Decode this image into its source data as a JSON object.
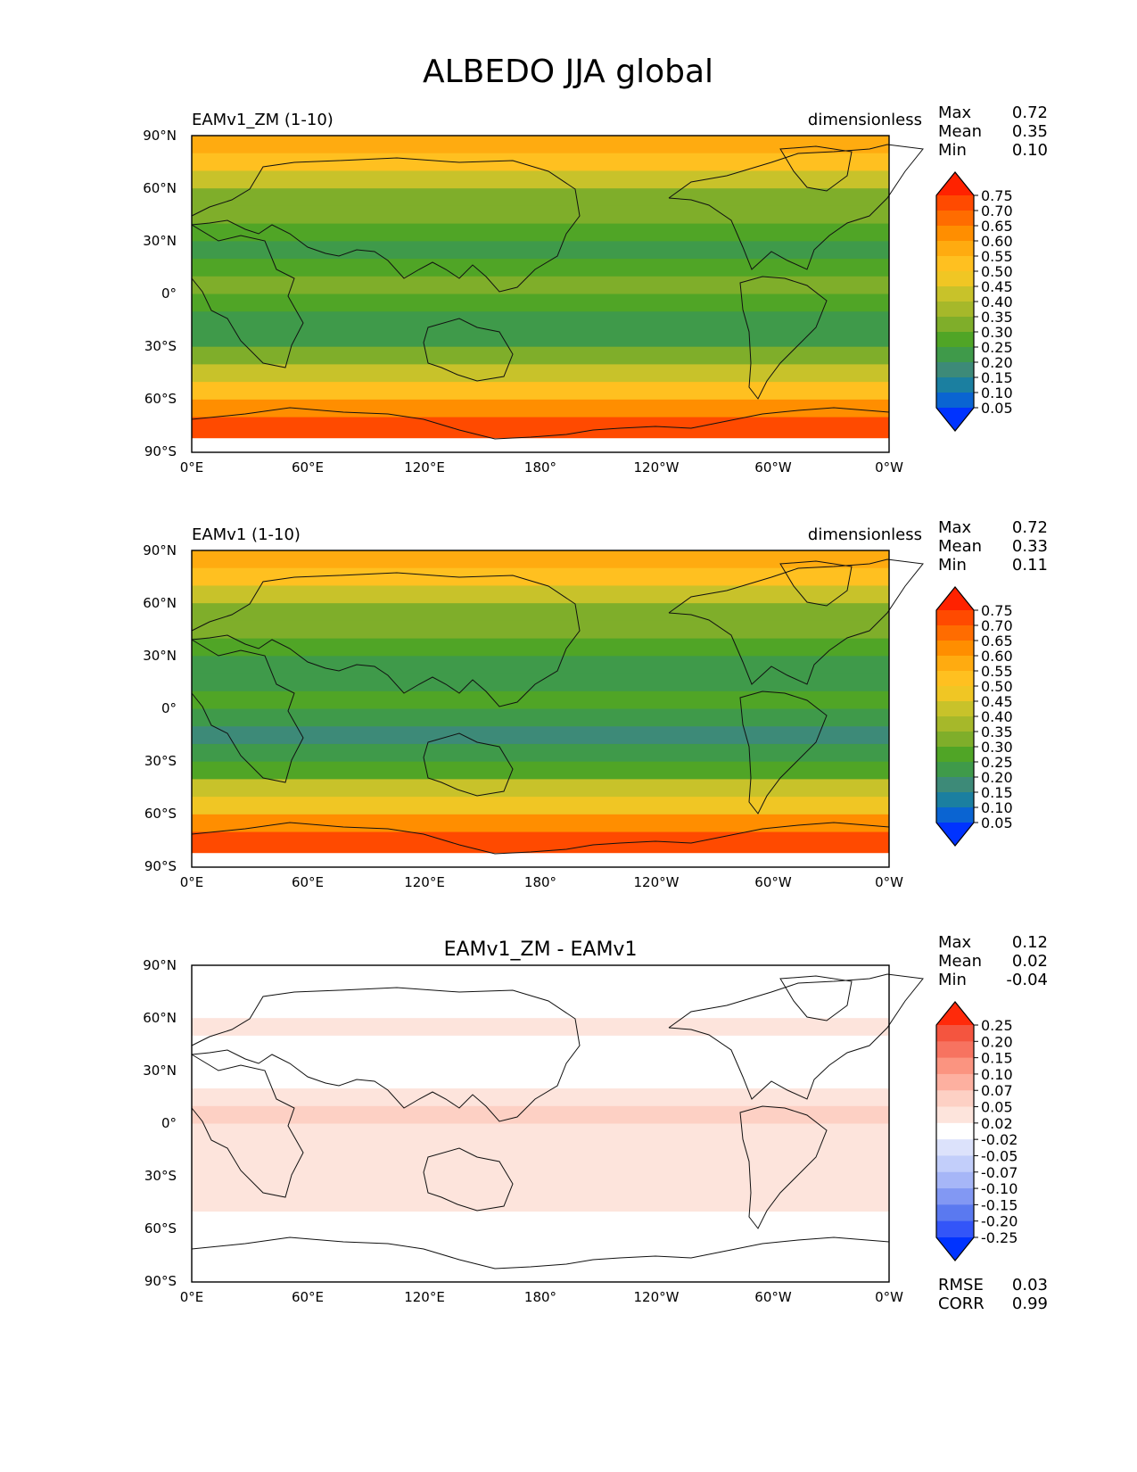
{
  "page_title": "ALBEDO JJA global",
  "chart_data": [
    {
      "type": "heatmap",
      "title_left": "EAMv1_ZM (1-10)",
      "title_right": "dimensionless",
      "stats": [
        {
          "label": "Max",
          "value": "0.72"
        },
        {
          "label": "Mean",
          "value": "0.35"
        },
        {
          "label": "Min",
          "value": "0.10"
        }
      ],
      "x_ticks": [
        "0°E",
        "60°E",
        "120°E",
        "180°",
        "120°W",
        "60°W",
        "0°W"
      ],
      "y_ticks": [
        "90°N",
        "60°N",
        "30°N",
        "0°",
        "30°S",
        "60°S",
        "90°S"
      ],
      "xlim": [
        0,
        360
      ],
      "ylim": [
        -90,
        90
      ],
      "colorbar": {
        "levels": [
          "0.75",
          "0.70",
          "0.65",
          "0.60",
          "0.55",
          "0.50",
          "0.45",
          "0.40",
          "0.35",
          "0.30",
          "0.25",
          "0.20",
          "0.15",
          "0.10",
          "0.05"
        ],
        "colors": [
          "#ff2200",
          "#ff4a00",
          "#ff6c00",
          "#ff8e00",
          "#ffab10",
          "#ffc020",
          "#f0c624",
          "#c8c22a",
          "#a6b82a",
          "#7fae2a",
          "#50a526",
          "#3f9a4a",
          "#3d8a78",
          "#1b7fa0",
          "#0a64d2",
          "#0033ff"
        ]
      },
      "zonal_profile": [
        {
          "lat": 90,
          "value": 0.58
        },
        {
          "lat": 80,
          "value": 0.5
        },
        {
          "lat": 70,
          "value": 0.4
        },
        {
          "lat": 60,
          "value": 0.34
        },
        {
          "lat": 50,
          "value": 0.32
        },
        {
          "lat": 40,
          "value": 0.27
        },
        {
          "lat": 30,
          "value": 0.22
        },
        {
          "lat": 20,
          "value": 0.25
        },
        {
          "lat": 10,
          "value": 0.33
        },
        {
          "lat": 0,
          "value": 0.25
        },
        {
          "lat": -10,
          "value": 0.2
        },
        {
          "lat": -20,
          "value": 0.23
        },
        {
          "lat": -30,
          "value": 0.3
        },
        {
          "lat": -40,
          "value": 0.42
        },
        {
          "lat": -50,
          "value": 0.5
        },
        {
          "lat": -60,
          "value": 0.6
        },
        {
          "lat": -70,
          "value": 0.72
        },
        {
          "lat": -80,
          "value": 0.7
        }
      ]
    },
    {
      "type": "heatmap",
      "title_left": "EAMv1 (1-10)",
      "title_right": "dimensionless",
      "stats": [
        {
          "label": "Max",
          "value": "0.72"
        },
        {
          "label": "Mean",
          "value": "0.33"
        },
        {
          "label": "Min",
          "value": "0.11"
        }
      ],
      "x_ticks": [
        "0°E",
        "60°E",
        "120°E",
        "180°",
        "120°W",
        "60°W",
        "0°W"
      ],
      "y_ticks": [
        "90°N",
        "60°N",
        "30°N",
        "0°",
        "30°S",
        "60°S",
        "90°S"
      ],
      "xlim": [
        0,
        360
      ],
      "ylim": [
        -90,
        90
      ],
      "colorbar": {
        "levels": [
          "0.75",
          "0.70",
          "0.65",
          "0.60",
          "0.55",
          "0.50",
          "0.45",
          "0.40",
          "0.35",
          "0.30",
          "0.25",
          "0.20",
          "0.15",
          "0.10",
          "0.05"
        ],
        "colors": [
          "#ff2200",
          "#ff4a00",
          "#ff6c00",
          "#ff8e00",
          "#ffab10",
          "#ffc020",
          "#f0c624",
          "#c8c22a",
          "#a6b82a",
          "#7fae2a",
          "#50a526",
          "#3f9a4a",
          "#3d8a78",
          "#1b7fa0",
          "#0a64d2",
          "#0033ff"
        ]
      },
      "zonal_profile": [
        {
          "lat": 90,
          "value": 0.58
        },
        {
          "lat": 80,
          "value": 0.5
        },
        {
          "lat": 70,
          "value": 0.4
        },
        {
          "lat": 60,
          "value": 0.34
        },
        {
          "lat": 50,
          "value": 0.31
        },
        {
          "lat": 40,
          "value": 0.26
        },
        {
          "lat": 30,
          "value": 0.2
        },
        {
          "lat": 20,
          "value": 0.22
        },
        {
          "lat": 10,
          "value": 0.27
        },
        {
          "lat": 0,
          "value": 0.22
        },
        {
          "lat": -10,
          "value": 0.19
        },
        {
          "lat": -20,
          "value": 0.21
        },
        {
          "lat": -30,
          "value": 0.28
        },
        {
          "lat": -40,
          "value": 0.4
        },
        {
          "lat": -50,
          "value": 0.49
        },
        {
          "lat": -60,
          "value": 0.6
        },
        {
          "lat": -70,
          "value": 0.72
        },
        {
          "lat": -80,
          "value": 0.7
        }
      ]
    },
    {
      "type": "heatmap",
      "title_center": "EAMv1_ZM - EAMv1",
      "stats": [
        {
          "label": "Max",
          "value": "0.12"
        },
        {
          "label": "Mean",
          "value": "0.02"
        },
        {
          "label": "Min",
          "value": "-0.04"
        }
      ],
      "bottom_stats": [
        {
          "label": "RMSE",
          "value": "0.03"
        },
        {
          "label": "CORR",
          "value": "0.99"
        }
      ],
      "x_ticks": [
        "0°E",
        "60°E",
        "120°E",
        "180°",
        "120°W",
        "60°W",
        "0°W"
      ],
      "y_ticks": [
        "90°N",
        "60°N",
        "30°N",
        "0°",
        "30°S",
        "60°S",
        "90°S"
      ],
      "xlim": [
        0,
        360
      ],
      "ylim": [
        -90,
        90
      ],
      "colorbar": {
        "levels": [
          "0.25",
          "0.20",
          "0.15",
          "0.10",
          "0.07",
          "0.05",
          "0.02",
          "-0.02",
          "-0.05",
          "-0.07",
          "-0.10",
          "-0.15",
          "-0.20",
          "-0.25"
        ],
        "colors": [
          "#ff2a0a",
          "#f4553f",
          "#f77360",
          "#fb9480",
          "#fdb0a0",
          "#fdd0c4",
          "#fde4dc",
          "#ffffff",
          "#dce2fb",
          "#c2cefa",
          "#a6b6f7",
          "#8298f3",
          "#5a79f0",
          "#3355f8",
          "#0033ff"
        ]
      },
      "zonal_profile": [
        {
          "lat": 90,
          "value": 0.0
        },
        {
          "lat": 80,
          "value": 0.0
        },
        {
          "lat": 70,
          "value": 0.0
        },
        {
          "lat": 60,
          "value": 0.02
        },
        {
          "lat": 50,
          "value": 0.0
        },
        {
          "lat": 40,
          "value": 0.0
        },
        {
          "lat": 30,
          "value": 0.01
        },
        {
          "lat": 20,
          "value": 0.04
        },
        {
          "lat": 10,
          "value": 0.06
        },
        {
          "lat": 0,
          "value": 0.02
        },
        {
          "lat": -10,
          "value": 0.02
        },
        {
          "lat": -20,
          "value": 0.02
        },
        {
          "lat": -30,
          "value": 0.02
        },
        {
          "lat": -40,
          "value": 0.02
        },
        {
          "lat": -50,
          "value": 0.01
        },
        {
          "lat": -60,
          "value": 0.0
        },
        {
          "lat": -70,
          "value": 0.0
        },
        {
          "lat": -80,
          "value": 0.0
        }
      ]
    }
  ]
}
